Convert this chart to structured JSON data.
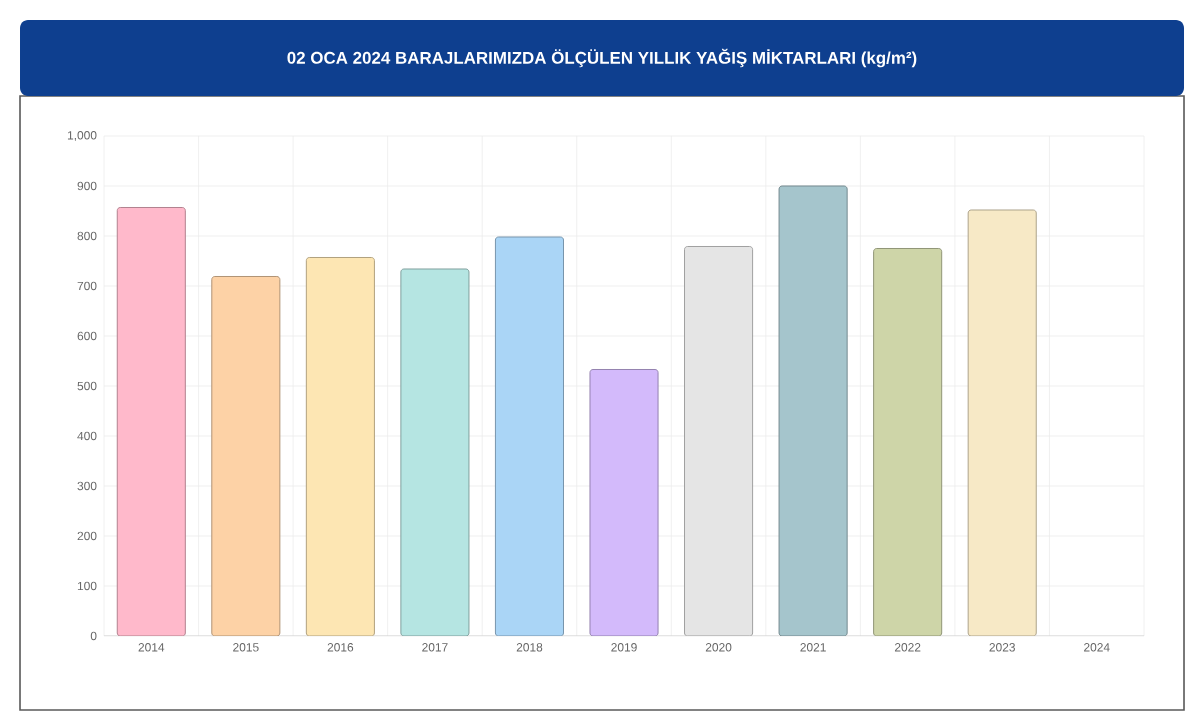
{
  "chart_data": {
    "type": "bar",
    "title": "02 OCA 2024 BARAJLARIMIZDA ÖLÇÜLEN YILLIK YAĞIŞ MİKTARLARI (kg/m²)",
    "categories": [
      "2014",
      "2015",
      "2016",
      "2017",
      "2018",
      "2019",
      "2020",
      "2021",
      "2022",
      "2023",
      "2024"
    ],
    "values": [
      857,
      719,
      757,
      734,
      798,
      533,
      779,
      900,
      775,
      852,
      null
    ],
    "colors": [
      "#ffb9cb",
      "#fdd2a6",
      "#fde6b3",
      "#b5e5e2",
      "#aad5f6",
      "#d3bafb",
      "#e5e5e5",
      "#a5c5cc",
      "#ced5a8",
      "#f7e9c6",
      "#cccccc"
    ],
    "ylim": [
      0,
      1000
    ],
    "yticks": [
      0,
      100,
      200,
      300,
      400,
      500,
      600,
      700,
      800,
      900,
      {
        "value": 1000,
        "label": "1,000"
      }
    ],
    "grid": true
  }
}
